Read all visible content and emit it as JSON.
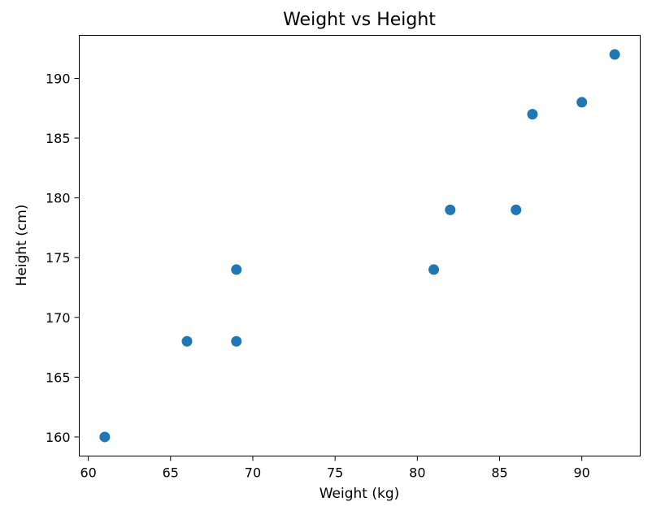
{
  "chart_data": {
    "type": "scatter",
    "title": "Weight vs Height",
    "xlabel": "Weight (kg)",
    "ylabel": "Height (cm)",
    "xlim": [
      59.45,
      93.55
    ],
    "ylim": [
      158.4,
      193.6
    ],
    "xticks": [
      60,
      65,
      70,
      75,
      80,
      85,
      90
    ],
    "yticks": [
      160,
      165,
      170,
      175,
      180,
      185,
      190
    ],
    "grid": false,
    "marker_color": "#1f77b4",
    "series": [
      {
        "points": [
          {
            "x": 61,
            "y": 160
          },
          {
            "x": 66,
            "y": 168
          },
          {
            "x": 69,
            "y": 168
          },
          {
            "x": 69,
            "y": 174
          },
          {
            "x": 81,
            "y": 174
          },
          {
            "x": 82,
            "y": 179
          },
          {
            "x": 86,
            "y": 179
          },
          {
            "x": 87,
            "y": 187
          },
          {
            "x": 90,
            "y": 188
          },
          {
            "x": 92,
            "y": 192
          }
        ]
      }
    ]
  }
}
